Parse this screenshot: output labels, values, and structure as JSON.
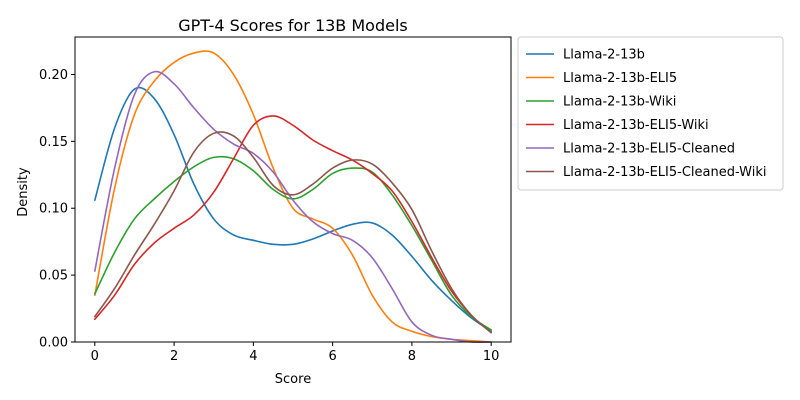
{
  "chart_data": {
    "type": "line",
    "title": "GPT-4 Scores for 13B Models",
    "xlabel": "Score",
    "ylabel": "Density",
    "xlim": [
      -0.5,
      10.5
    ],
    "ylim": [
      0,
      0.228
    ],
    "xticks": [
      0,
      2,
      4,
      6,
      8,
      10
    ],
    "yticks": [
      0.0,
      0.05,
      0.1,
      0.15,
      0.2
    ],
    "xtick_labels": [
      "0",
      "2",
      "4",
      "6",
      "8",
      "10"
    ],
    "ytick_labels": [
      "0.00",
      "0.05",
      "0.10",
      "0.15",
      "0.20"
    ],
    "grid": false,
    "legend_position": "outside-top-right",
    "x": [
      0,
      0.5,
      1,
      1.5,
      2,
      2.5,
      3,
      3.5,
      4,
      4.5,
      5,
      5.5,
      6,
      6.5,
      7,
      7.5,
      8,
      8.5,
      9,
      9.5,
      10
    ],
    "series": [
      {
        "name": "Llama-2-13b",
        "color": "#1f77b4",
        "values": [
          0.106,
          0.16,
          0.189,
          0.182,
          0.155,
          0.118,
          0.092,
          0.08,
          0.076,
          0.073,
          0.073,
          0.077,
          0.083,
          0.088,
          0.089,
          0.08,
          0.064,
          0.046,
          0.031,
          0.018,
          0.008
        ]
      },
      {
        "name": "Llama-2-13b-ELI5",
        "color": "#ff7f0e",
        "values": [
          0.035,
          0.115,
          0.17,
          0.195,
          0.209,
          0.216,
          0.216,
          0.2,
          0.17,
          0.13,
          0.1,
          0.092,
          0.085,
          0.065,
          0.035,
          0.015,
          0.008,
          0.004,
          0.002,
          0.001,
          0.0
        ]
      },
      {
        "name": "Llama-2-13b-Wiki",
        "color": "#2ca02c",
        "values": [
          0.036,
          0.067,
          0.092,
          0.107,
          0.12,
          0.131,
          0.138,
          0.137,
          0.128,
          0.114,
          0.107,
          0.114,
          0.126,
          0.13,
          0.127,
          0.11,
          0.087,
          0.061,
          0.035,
          0.019,
          0.009
        ]
      },
      {
        "name": "Llama-2-13b-ELI5-Wiki",
        "color": "#d62728",
        "values": [
          0.017,
          0.035,
          0.058,
          0.074,
          0.085,
          0.095,
          0.112,
          0.137,
          0.162,
          0.169,
          0.162,
          0.151,
          0.143,
          0.136,
          0.126,
          0.113,
          0.09,
          0.063,
          0.038,
          0.02,
          0.007
        ]
      },
      {
        "name": "Llama-2-13b-ELI5-Cleaned",
        "color": "#9467bd",
        "values": [
          0.053,
          0.13,
          0.185,
          0.202,
          0.193,
          0.175,
          0.159,
          0.148,
          0.141,
          0.127,
          0.106,
          0.09,
          0.081,
          0.076,
          0.063,
          0.04,
          0.015,
          0.005,
          0.002,
          0.0,
          0.0
        ]
      },
      {
        "name": "Llama-2-13b-ELI5-Cleaned-Wiki",
        "color": "#8c564b",
        "values": [
          0.019,
          0.04,
          0.065,
          0.088,
          0.113,
          0.142,
          0.156,
          0.154,
          0.138,
          0.117,
          0.11,
          0.118,
          0.13,
          0.136,
          0.133,
          0.119,
          0.099,
          0.068,
          0.04,
          0.02,
          0.007
        ]
      }
    ]
  }
}
